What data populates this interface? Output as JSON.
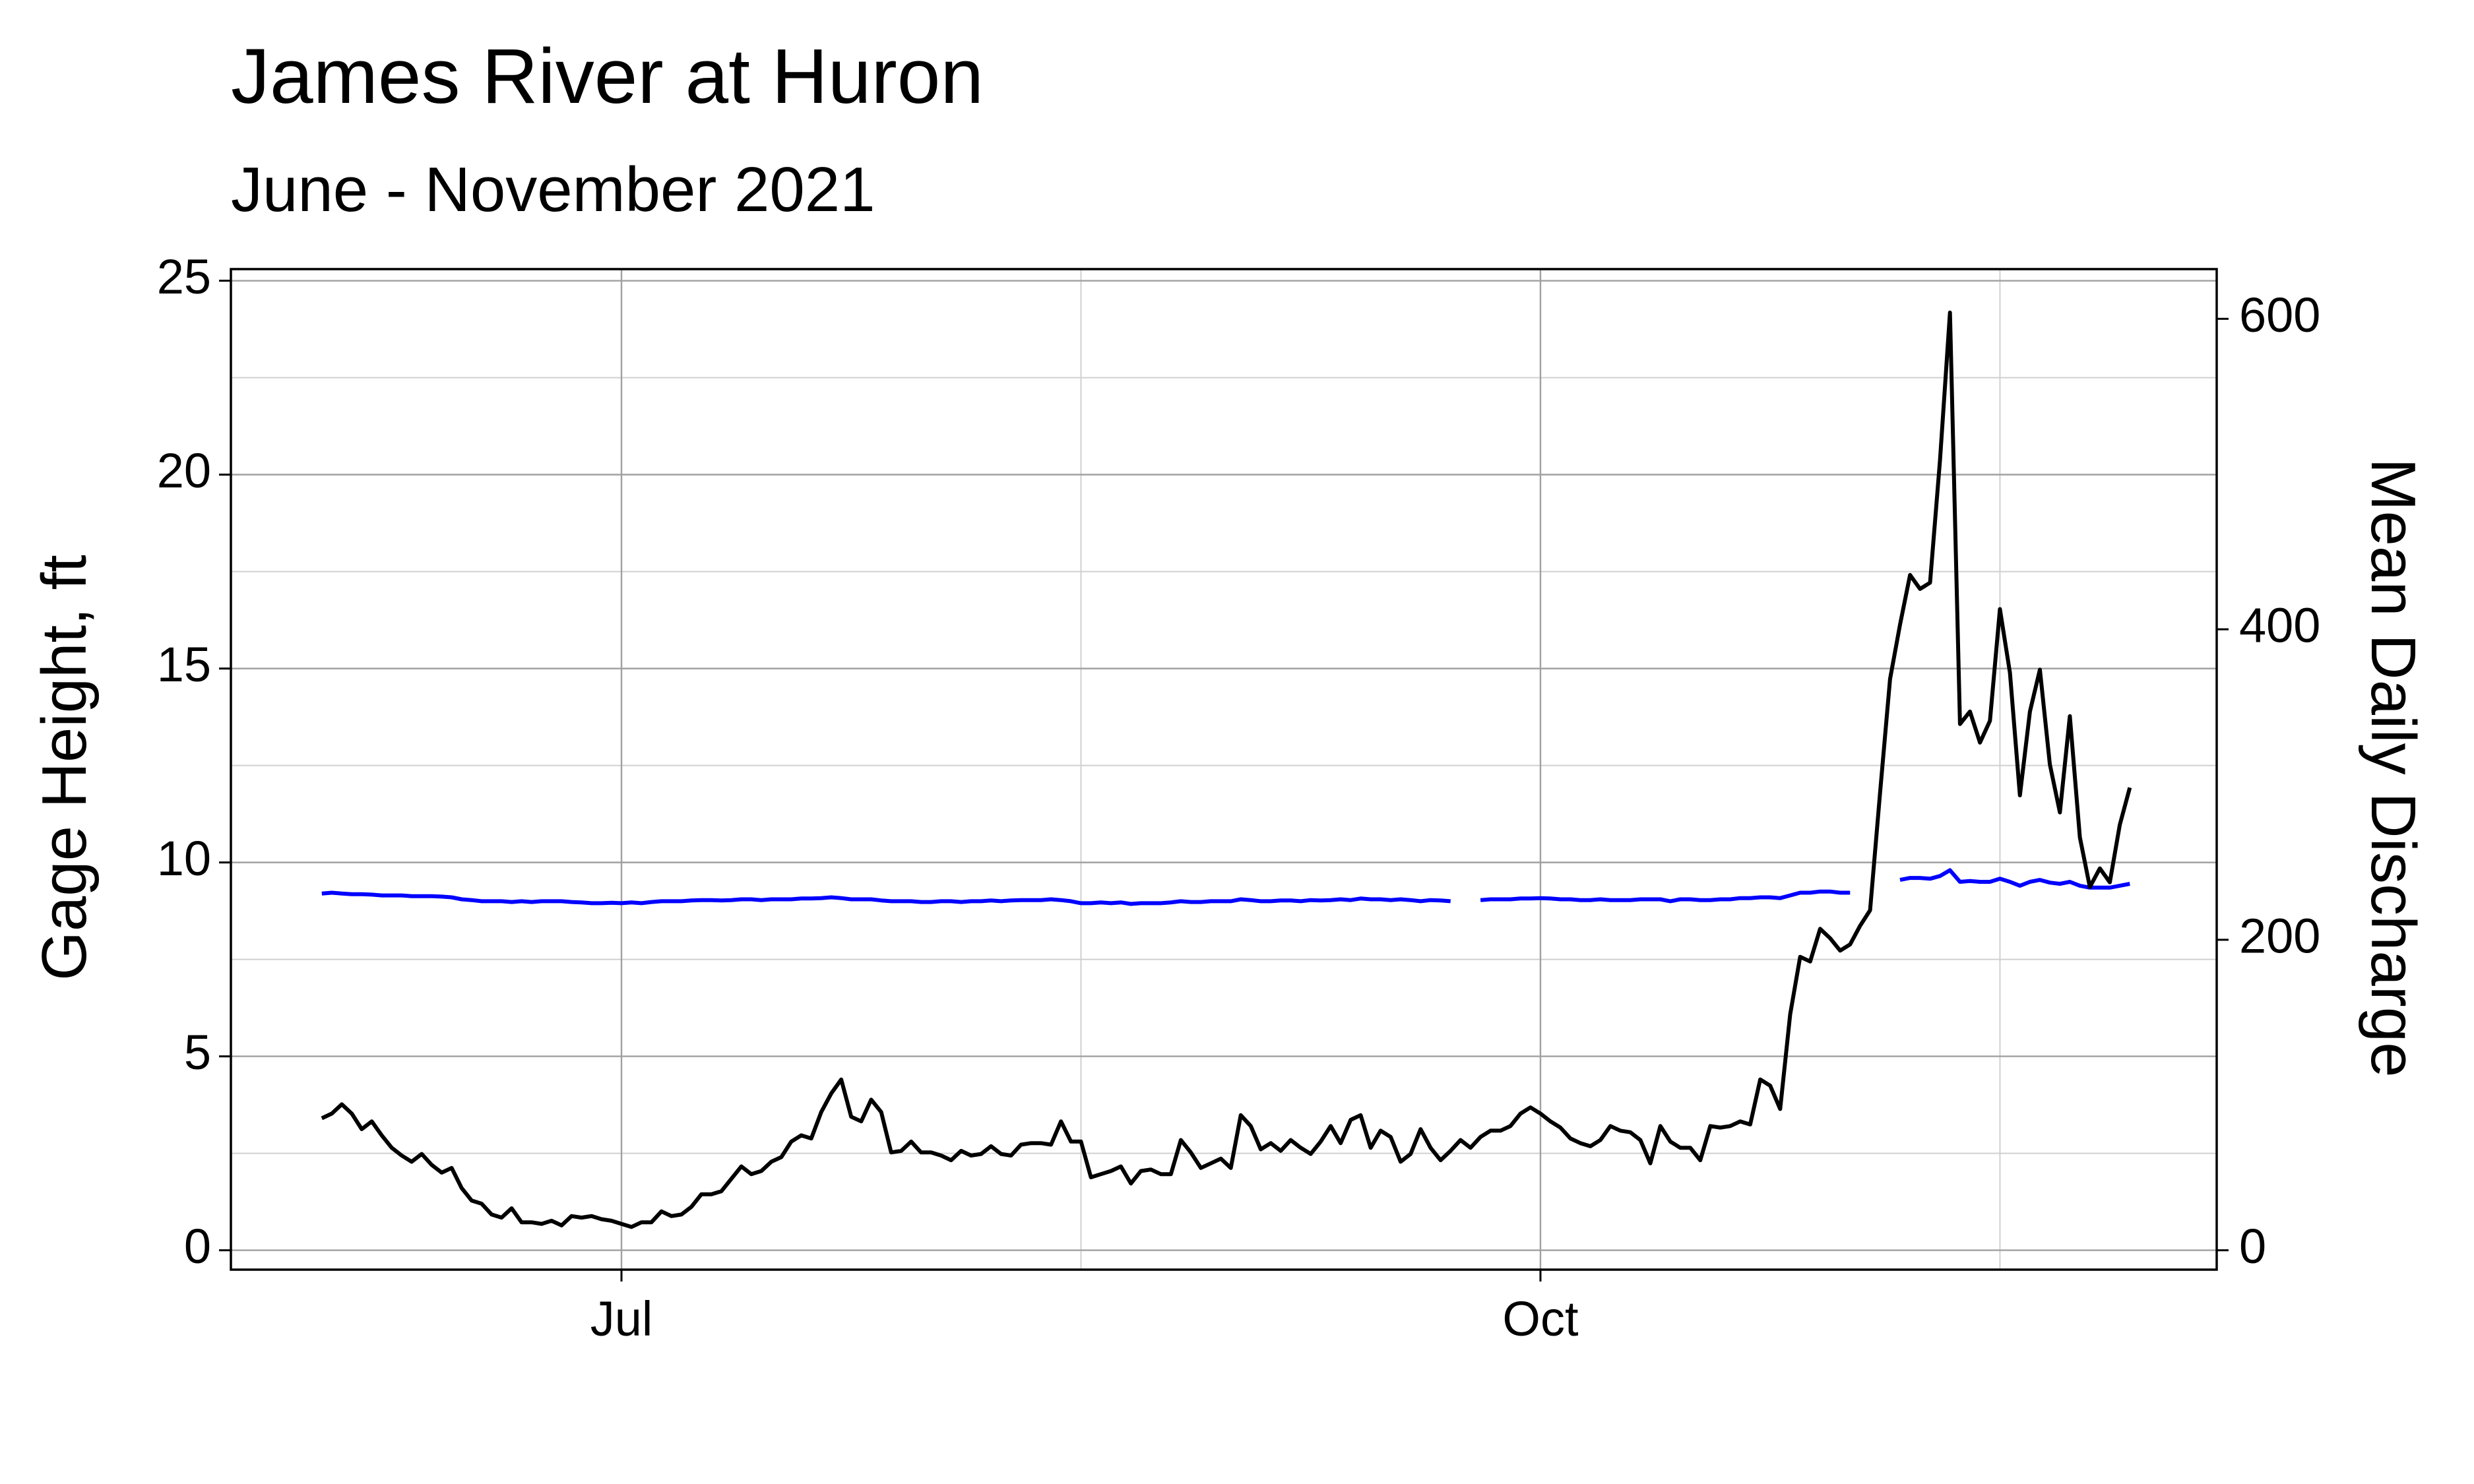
{
  "chart_data": {
    "type": "line",
    "title": "James River at Huron",
    "subtitle": "June - November 2021",
    "ylabel": "Gage Height, ft",
    "y2label": "Mean Daily Discharge",
    "ylabel_color": "#0000ff",
    "categories": [
      null,
      null,
      null,
      null,
      null,
      null,
      null,
      null,
      null,
      null,
      null,
      null,
      null,
      null,
      null,
      null,
      null,
      null,
      null,
      null,
      null,
      null,
      null,
      null,
      null,
      null,
      null,
      null,
      null,
      null,
      "Jul",
      null,
      null,
      null,
      null,
      null,
      null,
      null,
      null,
      null,
      null,
      null,
      null,
      null,
      null,
      null,
      null,
      null,
      null,
      null,
      null,
      null,
      null,
      null,
      null,
      null,
      null,
      null,
      null,
      null,
      null,
      null,
      null,
      null,
      null,
      null,
      null,
      null,
      null,
      null,
      null,
      null,
      null,
      null,
      null,
      null,
      null,
      null,
      null,
      null,
      null,
      null,
      null,
      null,
      null,
      null,
      null,
      null,
      null,
      null,
      null,
      null,
      null,
      null,
      null,
      null,
      null,
      null,
      null,
      null,
      null,
      null,
      null,
      null,
      null,
      null,
      null,
      null,
      null,
      null,
      null,
      null,
      null,
      null,
      null,
      null,
      null,
      null,
      null,
      null,
      null,
      null,
      "Oct",
      null,
      null,
      null,
      null,
      null,
      null,
      null,
      null,
      null,
      null,
      null,
      null,
      null,
      null,
      null,
      null,
      null,
      null,
      null,
      null,
      null,
      null,
      null,
      null,
      null,
      null,
      null,
      null,
      null,
      null,
      null,
      null,
      null,
      null,
      null,
      null,
      null,
      null,
      null,
      null,
      null,
      null,
      null,
      null,
      null,
      null,
      null,
      null,
      null,
      null,
      null,
      null,
      null,
      null,
      null,
      null,
      null,
      null,
      null
    ],
    "series": [
      {
        "color": "#0000ff",
        "values": [
          9.2,
          9.22,
          9.2,
          9.18,
          9.18,
          9.17,
          9.15,
          9.15,
          9.15,
          9.13,
          9.13,
          9.13,
          9.12,
          9.1,
          9.05,
          9.03,
          9.0,
          9.0,
          9.0,
          8.98,
          9.0,
          8.98,
          9.0,
          9.0,
          9.0,
          8.98,
          8.97,
          8.95,
          8.95,
          8.96,
          8.95,
          8.97,
          8.95,
          8.98,
          9.0,
          9.0,
          9.0,
          9.02,
          9.03,
          9.03,
          9.02,
          9.03,
          9.05,
          9.05,
          9.03,
          9.05,
          9.05,
          9.05,
          9.07,
          9.07,
          9.08,
          9.1,
          9.08,
          9.05,
          9.05,
          9.05,
          9.02,
          9.0,
          9.0,
          9.0,
          8.98,
          8.98,
          9.0,
          9.0,
          8.98,
          9.0,
          9.0,
          9.02,
          9.0,
          9.02,
          9.03,
          9.03,
          9.03,
          9.05,
          9.03,
          9.0,
          8.95,
          8.95,
          8.97,
          8.95,
          8.97,
          8.93,
          8.95,
          8.95,
          8.95,
          8.97,
          9.0,
          8.98,
          8.98,
          9.0,
          9.0,
          9.0,
          9.05,
          9.03,
          9.0,
          9.0,
          9.02,
          9.02,
          9.0,
          9.03,
          9.02,
          9.03,
          9.05,
          9.03,
          9.07,
          9.05,
          9.05,
          9.03,
          9.05,
          9.03,
          9.0,
          9.03,
          9.02,
          9.0,
          null,
          null,
          9.03,
          9.05,
          9.05,
          9.05,
          9.07,
          9.07,
          9.08,
          9.07,
          9.05,
          9.05,
          9.03,
          9.03,
          9.05,
          9.03,
          9.03,
          9.03,
          9.05,
          9.05,
          9.05,
          9.0,
          9.05,
          9.05,
          9.03,
          9.03,
          9.05,
          9.05,
          9.08,
          9.08,
          9.1,
          9.1,
          9.08,
          9.15,
          9.22,
          9.22,
          9.25,
          9.25,
          9.22,
          9.22,
          null,
          null,
          null,
          null,
          9.55,
          9.6,
          9.6,
          9.58,
          9.65,
          9.8,
          9.5,
          9.52,
          9.5,
          9.5,
          9.58,
          9.5,
          9.4,
          9.5,
          9.55,
          9.48,
          9.45,
          9.5,
          9.4,
          9.35,
          9.35,
          9.35,
          9.4,
          9.45
        ]
      },
      {
        "color": "#000000",
        "axis": "y2",
        "values": [
          85,
          88,
          94,
          88,
          78,
          83,
          74,
          66,
          61,
          57,
          62,
          55,
          50,
          53,
          40,
          32,
          30,
          23,
          21,
          27,
          18,
          18,
          17,
          19,
          16,
          22,
          21,
          22,
          20,
          19,
          17,
          15,
          18,
          18,
          25,
          22,
          23,
          28,
          36,
          36,
          38,
          46,
          54,
          49,
          51,
          57,
          60,
          70,
          74,
          72,
          89,
          101,
          110,
          86,
          83,
          97,
          89,
          63,
          64,
          70,
          63,
          63,
          61,
          58,
          64,
          61,
          62,
          67,
          62,
          61,
          68,
          69,
          69,
          68,
          83,
          70,
          70,
          47,
          49,
          51,
          54,
          43,
          51,
          52,
          49,
          49,
          71,
          63,
          53,
          56,
          59,
          53,
          87,
          80,
          65,
          69,
          64,
          71,
          66,
          62,
          70,
          80,
          69,
          84,
          87,
          66,
          77,
          73,
          57,
          62,
          78,
          66,
          58,
          64,
          71,
          66,
          73,
          77,
          77,
          80,
          88,
          92,
          88,
          83,
          79,
          72,
          69,
          67,
          71,
          80,
          77,
          76,
          71,
          56,
          80,
          70,
          66,
          66,
          58,
          80,
          79,
          80,
          83,
          81,
          110,
          106,
          91,
          152,
          189,
          186,
          207,
          201,
          193,
          197,
          209,
          219,
          295,
          368,
          403,
          435,
          426,
          430,
          509,
          604,
          339,
          347,
          327,
          341,
          413,
          372,
          293,
          347,
          374,
          313,
          282,
          344,
          266,
          234,
          246,
          237,
          274,
          298
        ]
      }
    ],
    "ylim": [
      -0.5,
      25.3
    ],
    "yticks": [
      0,
      5,
      10,
      15,
      20,
      25
    ],
    "y2lim": [
      -12.5,
      632
    ],
    "y2ticks": [
      0,
      200,
      400,
      600
    ],
    "grid": true
  }
}
